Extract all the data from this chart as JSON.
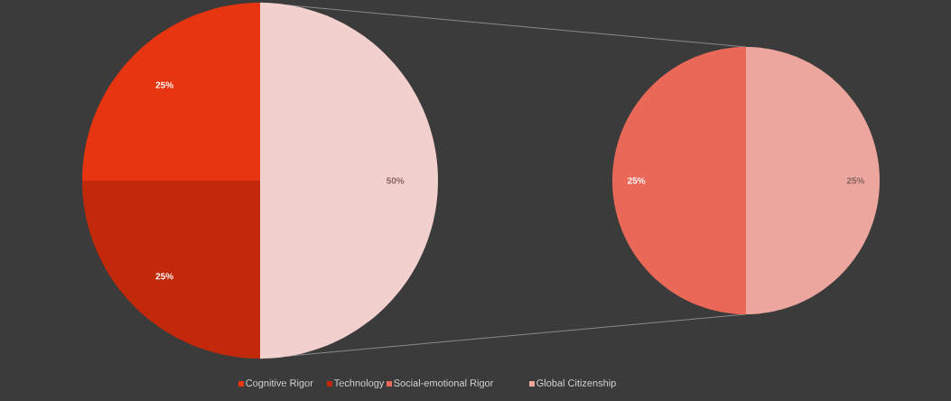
{
  "chart_data": [
    {
      "type": "pie",
      "categories": [
        "Cognitive Rigor",
        "Technology",
        null
      ],
      "values": [
        25,
        25,
        50
      ],
      "colors": [
        "#e63510",
        "#c2290b",
        "#f1d0cd"
      ],
      "value_labels": [
        "25%",
        "25%",
        "50%"
      ],
      "legend": "bottom"
    },
    {
      "type": "pie",
      "categories": [
        "Social-emotional Rigor",
        "Global Citizenship"
      ],
      "values": [
        25,
        25
      ],
      "colors": [
        "#ea6858",
        "#eca69e"
      ],
      "value_labels": [
        "25%",
        "25%"
      ],
      "legend": "bottom"
    }
  ]
}
